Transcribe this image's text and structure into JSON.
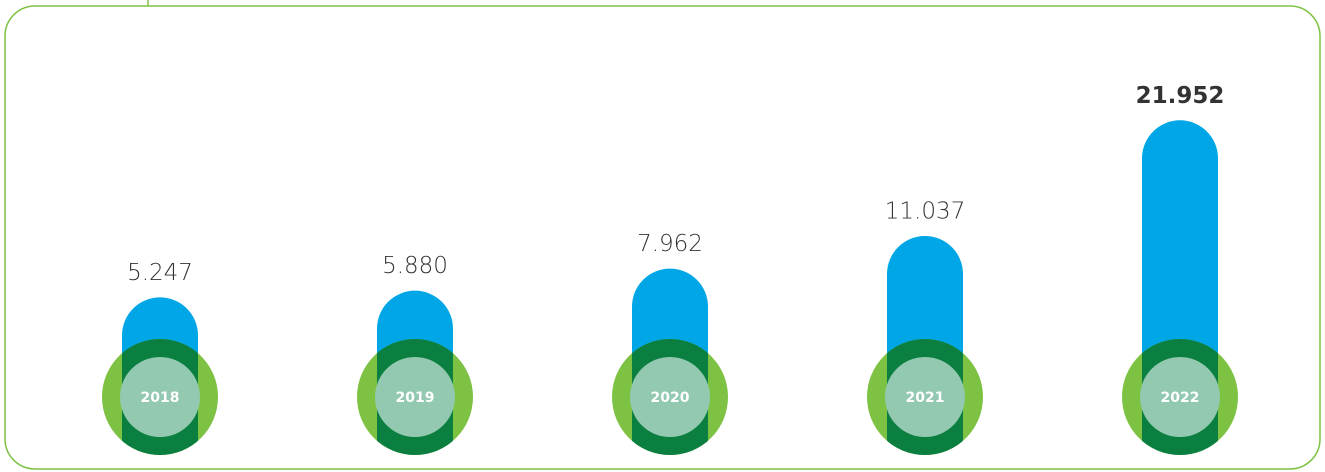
{
  "chart_data": {
    "type": "bar",
    "categories": [
      "2018",
      "2019",
      "2020",
      "2021",
      "2022"
    ],
    "values": [
      5.247,
      5.88,
      7.962,
      11.037,
      21.952
    ],
    "value_labels": [
      "5.247",
      "5.880",
      "7.962",
      "11.037",
      "21.952"
    ],
    "color": "#00a6e6"
  }
}
